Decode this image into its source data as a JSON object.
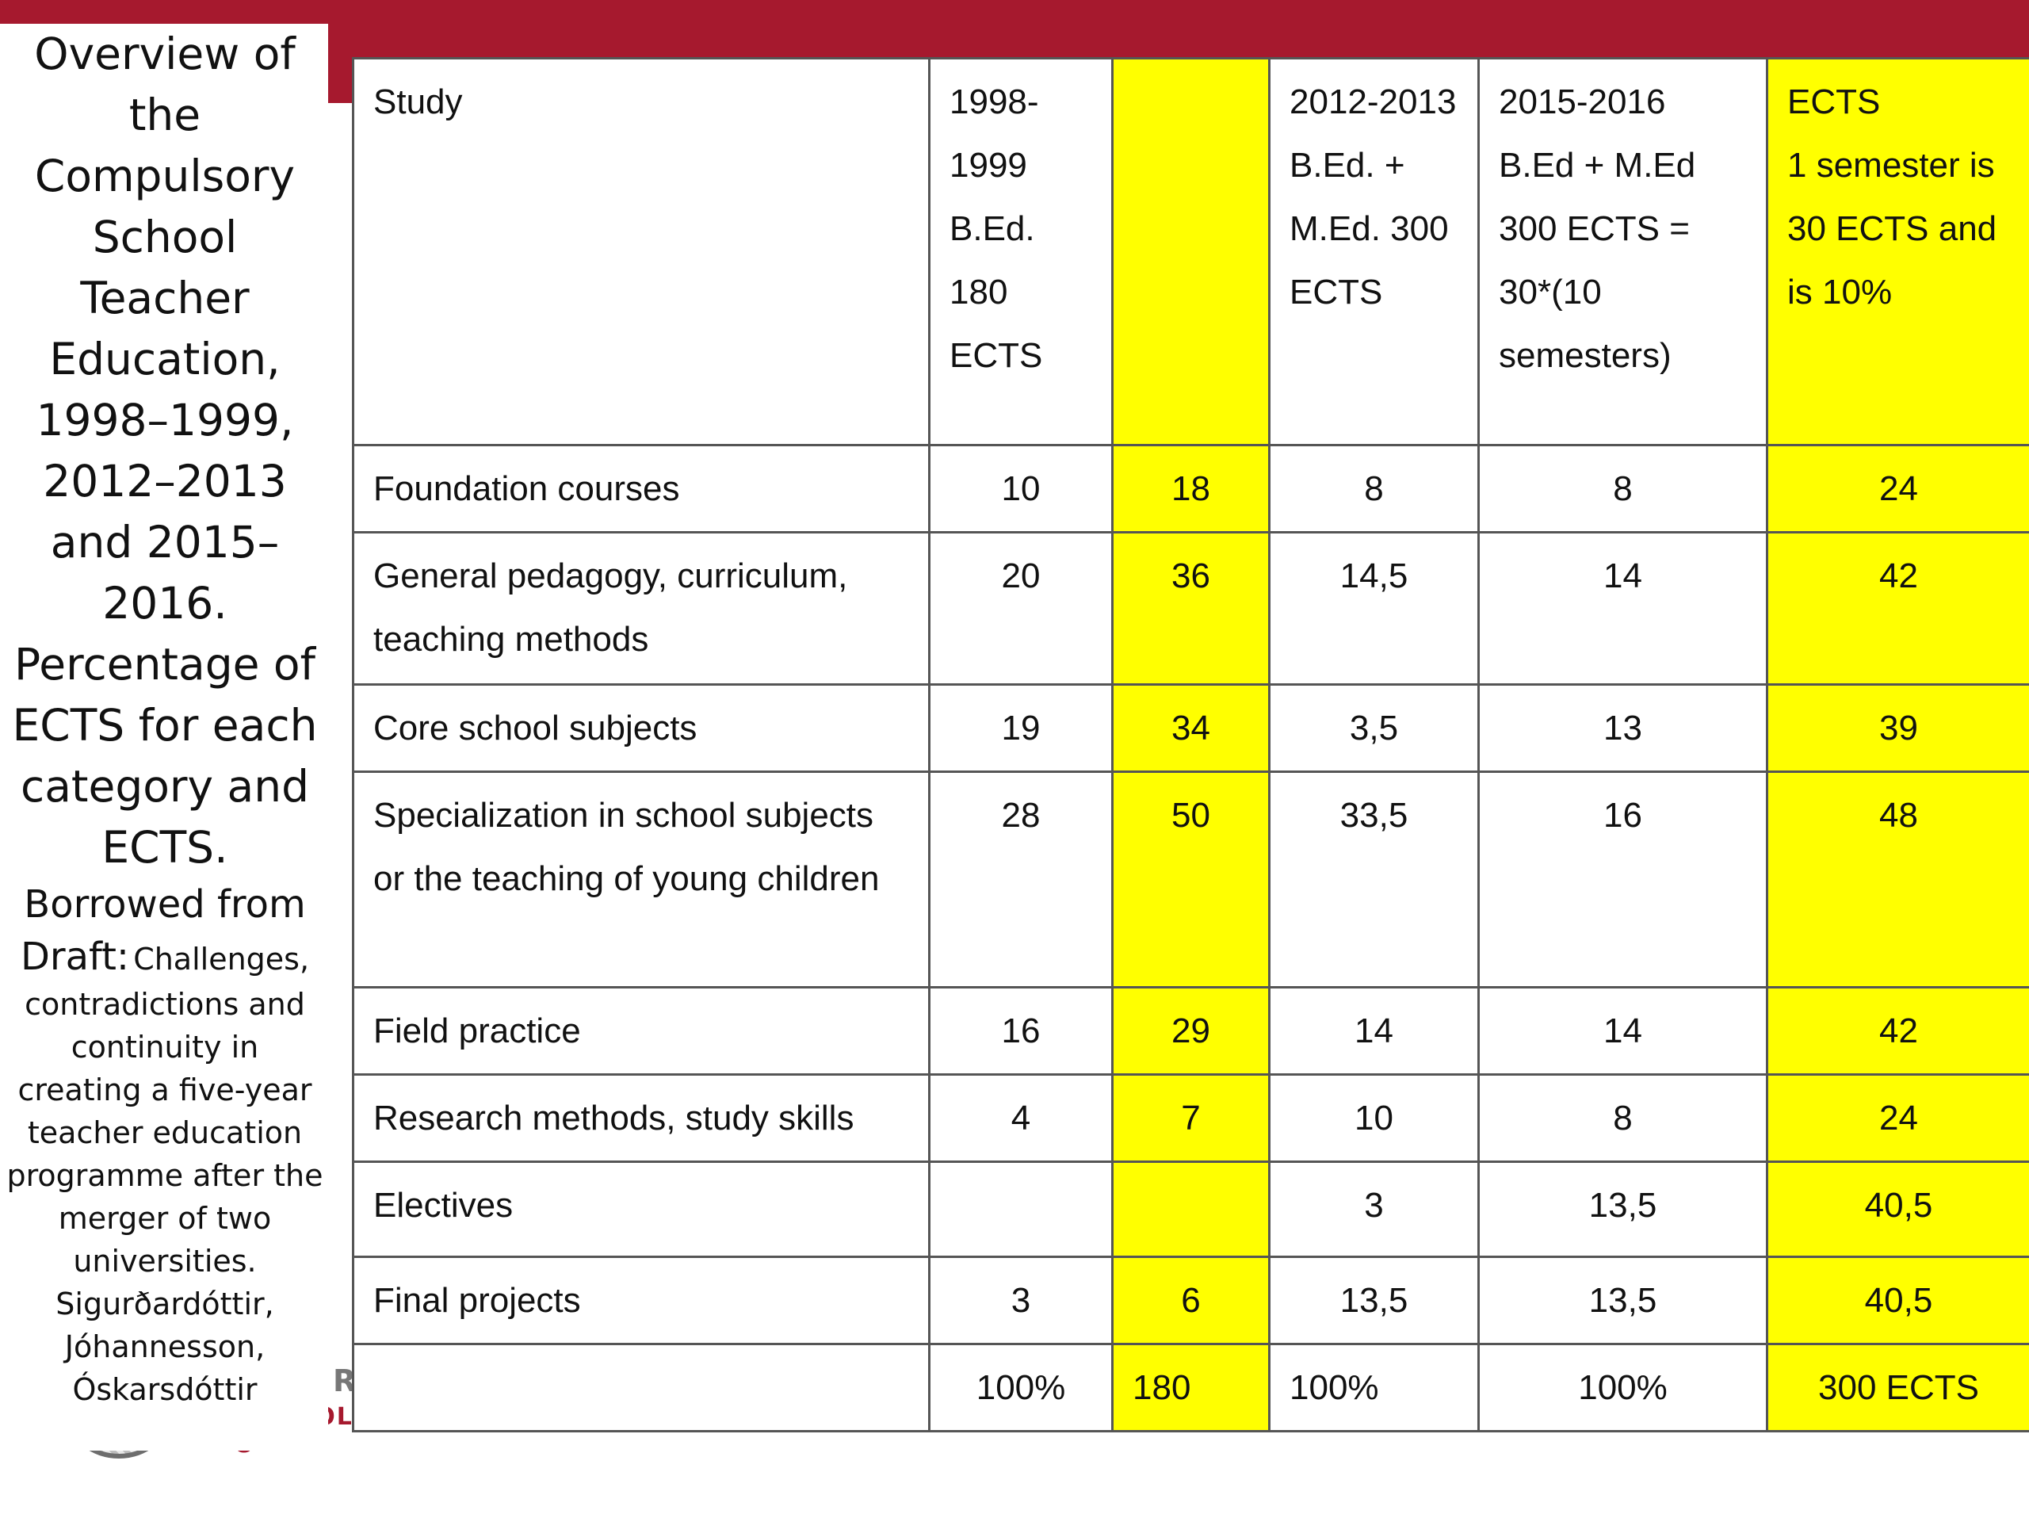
{
  "caption": {
    "title": "Overview of the Compulsory School Teacher Education, 1998–1999, 2012–2013 and 2015–2016. Percentage of ECTS for each category and ECTS.",
    "source_lead": "Borrowed from Draft:",
    "source": "Challenges, contradictions and continuity in creating a five-year teacher education programme after the merger of two universities. Sigurðardóttir, Jóhannesson, Óskarsdóttir"
  },
  "logo": {
    "text": "SCHOOL O",
    "letter": "R"
  },
  "table": {
    "header": {
      "study": "Study",
      "col1_year": "1998-1999",
      "col1_desc": "B.Ed. 180 ECTS",
      "col2": "",
      "col3_year": "2012-2013",
      "col3_desc": "B.Ed. + M.Ed. 300 ECTS",
      "col4_year": "2015-2016",
      "col4_line2": "B.Ed + M.Ed",
      "col4_line3": "300 ECTS = 30*(10 semesters)",
      "col5_line1": "ECTS",
      "col5_line2": "1 semester is 30 ECTS and is 10%"
    },
    "rows": [
      {
        "study": "Foundation courses",
        "y1998": "10",
        "ects1998": "18",
        "y2012": "8",
        "y2015": "8",
        "ects2015": "24"
      },
      {
        "study": "General pedagogy, curriculum, teaching methods",
        "y1998": "20",
        "ects1998": "36",
        "y2012": "14,5",
        "y2015": "14",
        "ects2015": "42"
      },
      {
        "study": "Core school subjects",
        "y1998": "19",
        "ects1998": "34",
        "y2012": "3,5",
        "y2015": "13",
        "ects2015": "39"
      },
      {
        "study": "Specialization in school subjects or the teaching of young children",
        "y1998": "28",
        "ects1998": "50",
        "y2012": "33,5",
        "y2015": "16",
        "ects2015": "48"
      },
      {
        "study": "Field practice",
        "y1998": "16",
        "ects1998": "29",
        "y2012": "14",
        "y2015": "14",
        "ects2015": "42"
      },
      {
        "study": "Research methods, study skills",
        "y1998": "4",
        "ects1998": "7",
        "y2012": "10",
        "y2015": "8",
        "ects2015": "24"
      },
      {
        "study": "Electives",
        "y1998": "",
        "ects1998": "",
        "y2012": "3",
        "y2015": "13,5",
        "ects2015": "40,5"
      },
      {
        "study": "Final projects",
        "y1998": "3",
        "ects1998": "6",
        "y2012": "13,5",
        "y2015": "13,5",
        "ects2015": "40,5"
      }
    ],
    "totals": {
      "study": "",
      "y1998": "100%",
      "ects1998": "180",
      "y2012": "100%",
      "y2015": "100%",
      "ects2015": "300 ECTS"
    }
  },
  "colors": {
    "accent": "#a6192e",
    "highlight": "#ffff00"
  }
}
